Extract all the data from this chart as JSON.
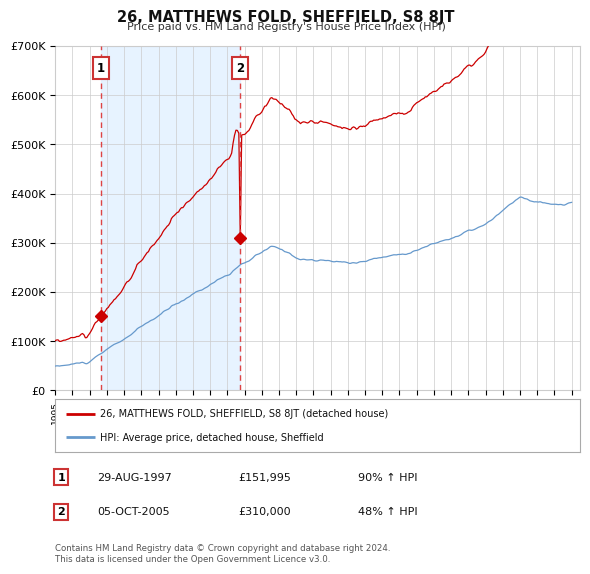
{
  "title": "26, MATTHEWS FOLD, SHEFFIELD, S8 8JT",
  "subtitle": "Price paid vs. HM Land Registry's House Price Index (HPI)",
  "ylim": [
    0,
    700000
  ],
  "yticks": [
    0,
    100000,
    200000,
    300000,
    400000,
    500000,
    600000,
    700000
  ],
  "ytick_labels": [
    "£0",
    "£100K",
    "£200K",
    "£300K",
    "£400K",
    "£500K",
    "£600K",
    "£700K"
  ],
  "xmin": 1995,
  "xmax": 2025.5,
  "red_line_color": "#cc0000",
  "blue_line_color": "#6699cc",
  "blue_fill_color": "#ddeeff",
  "marker_color": "#cc0000",
  "dashed_line_color": "#dd4444",
  "sale1_x": 1997.66,
  "sale1_y": 151995,
  "sale1_label": "1",
  "sale2_x": 2005.75,
  "sale2_y": 310000,
  "sale2_label": "2",
  "legend_line1": "26, MATTHEWS FOLD, SHEFFIELD, S8 8JT (detached house)",
  "legend_line2": "HPI: Average price, detached house, Sheffield",
  "table_row1": [
    "1",
    "29-AUG-1997",
    "£151,995",
    "90% ↑ HPI"
  ],
  "table_row2": [
    "2",
    "05-OCT-2005",
    "£310,000",
    "48% ↑ HPI"
  ],
  "footer": "Contains HM Land Registry data © Crown copyright and database right 2024.\nThis data is licensed under the Open Government Licence v3.0.",
  "background_color": "#ffffff",
  "label_box_color": "#cc3333",
  "grid_color": "#cccccc",
  "spine_color": "#cccccc"
}
